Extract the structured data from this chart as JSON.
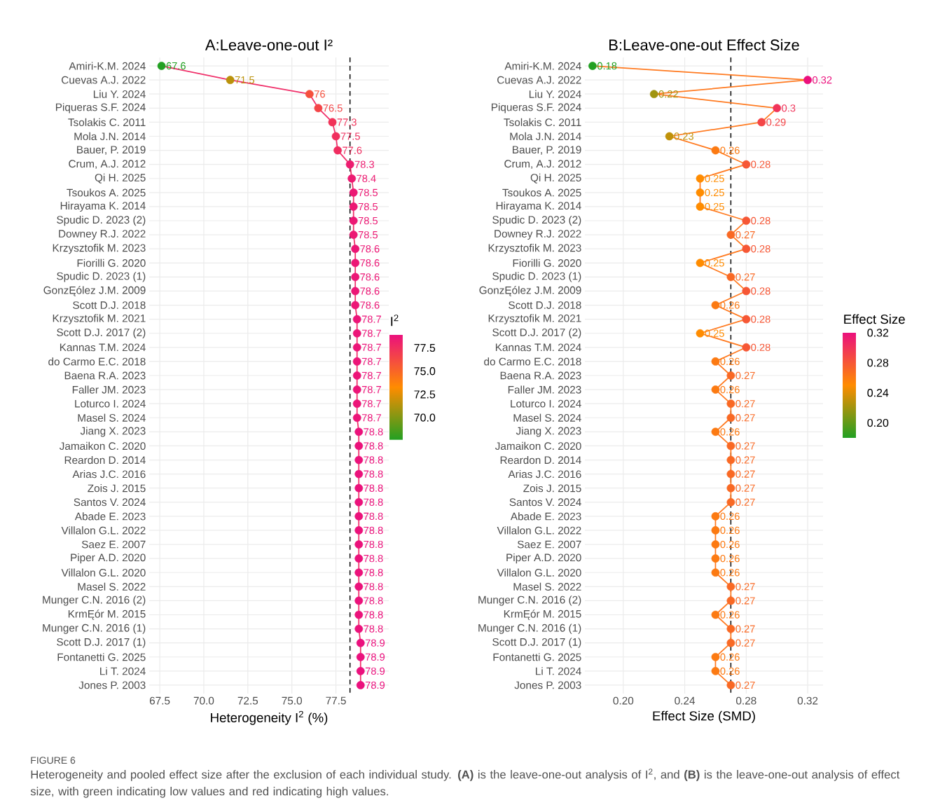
{
  "chart_data": [
    {
      "type": "line",
      "orientation": "horizontal",
      "title": "A:Leave-one-out I²",
      "xlabel": "Heterogeneity I$^{2}$ (%)",
      "clabel": "I$^{2}$",
      "categories": [
        "Amiri-K.M. 2024",
        "Cuevas A.J. 2022",
        "Liu Y. 2024",
        "Piqueras S.F. 2024",
        "Tsolakis C. 2011",
        "Mola J.N. 2014",
        "Bauer, P. 2019",
        "Crum, A.J. 2012",
        "Qi H. 2025",
        "Tsoukos A. 2025",
        "Hirayama K. 2014",
        "Spudic D. 2023 (2)",
        "Downey R.J. 2022",
        "Krzysztofik M. 2023",
        "Fiorilli G. 2020",
        "Spudic D. 2023 (1)",
        "GonzĘólez J.M. 2009",
        "Scott D.J. 2018",
        "Krzysztofik M. 2021",
        "Scott D.J. 2017 (2)",
        "Kannas T.M. 2024",
        "do Carmo E.C. 2018",
        "Baena R.A. 2023",
        "Faller JM. 2023",
        "Loturco I. 2024",
        "Masel S. 2024",
        "Jiang X. 2023",
        "Jamaikon C. 2020",
        "Reardon D. 2014",
        "Arias J.C. 2016",
        "Zois J. 2015",
        "Santos V. 2024",
        "Abade E. 2023",
        "Villalon G.L. 2022",
        "Saez E. 2007",
        "Piper A.D. 2020",
        "Villalon G.L. 2020",
        "Masel S. 2022",
        "Munger C.N. 2016 (2)",
        "KrmĘór M. 2015",
        "Munger C.N. 2016 (1)",
        "Scott D.J. 2017 (1)",
        "Fontanetti G. 2025",
        "Li T. 2024",
        "Jones P. 2003"
      ],
      "values": [
        67.6,
        71.5,
        76,
        76.5,
        77.3,
        77.5,
        77.6,
        78.3,
        78.4,
        78.5,
        78.5,
        78.5,
        78.5,
        78.6,
        78.6,
        78.6,
        78.6,
        78.6,
        78.7,
        78.7,
        78.7,
        78.7,
        78.7,
        78.7,
        78.7,
        78.7,
        78.8,
        78.8,
        78.8,
        78.8,
        78.8,
        78.8,
        78.8,
        78.8,
        78.8,
        78.8,
        78.8,
        78.8,
        78.8,
        78.8,
        78.8,
        78.9,
        78.9,
        78.9,
        78.9
      ],
      "color": "#f0306a",
      "clim": [
        67.6,
        78.9
      ],
      "cticks": [
        {
          "value": 70,
          "label": "70.0"
        },
        72.5,
        {
          "value": 75,
          "label": "75.0"
        },
        77.5
      ],
      "xlim": [
        66.9,
        80.5
      ],
      "xticks": [
        67.5,
        {
          "value": 70,
          "label": "70.0"
        },
        72.5,
        {
          "value": 75,
          "label": "75.0"
        },
        77.5
      ],
      "ref_lines": [
        {
          "axis": "x",
          "value": 78.3,
          "color": "#000000",
          "line_style": "dashed"
        }
      ],
      "marker": "circle",
      "line_style": "solid",
      "grid": true,
      "data_labels": true,
      "annotations": [
        "FIGURE 6",
        "Heterogeneity and pooled effect size after the exclusion of each individual study. **(A)** is the leave-one-out analysis of I$^{2}$, and **(B)** is the leave-one-out analysis of effect size, with green indicating low values and red indicating high values."
      ]
    },
    {
      "type": "line",
      "orientation": "horizontal",
      "title": "B:Leave-one-out Effect Size",
      "xlabel": "Effect Size (SMD)",
      "clabel": "Effect Size",
      "categories": [
        "Amiri-K.M. 2024",
        "Cuevas A.J. 2022",
        "Liu Y. 2024",
        "Piqueras S.F. 2024",
        "Tsolakis C. 2011",
        "Mola J.N. 2014",
        "Bauer, P. 2019",
        "Crum, A.J. 2012",
        "Qi H. 2025",
        "Tsoukos A. 2025",
        "Hirayama K. 2014",
        "Spudic D. 2023 (2)",
        "Downey R.J. 2022",
        "Krzysztofik M. 2023",
        "Fiorilli G. 2020",
        "Spudic D. 2023 (1)",
        "GonzĘólez J.M. 2009",
        "Scott D.J. 2018",
        "Krzysztofik M. 2021",
        "Scott D.J. 2017 (2)",
        "Kannas T.M. 2024",
        "do Carmo E.C. 2018",
        "Baena R.A. 2023",
        "Faller JM. 2023",
        "Loturco I. 2024",
        "Masel S. 2024",
        "Jiang X. 2023",
        "Jamaikon C. 2020",
        "Reardon D. 2014",
        "Arias J.C. 2016",
        "Zois J. 2015",
        "Santos V. 2024",
        "Abade E. 2023",
        "Villalon G.L. 2022",
        "Saez E. 2007",
        "Piper A.D. 2020",
        "Villalon G.L. 2020",
        "Masel S. 2022",
        "Munger C.N. 2016 (2)",
        "KrmĘór M. 2015",
        "Munger C.N. 2016 (1)",
        "Scott D.J. 2017 (1)",
        "Fontanetti G. 2025",
        "Li T. 2024",
        "Jones P. 2003"
      ],
      "values": [
        0.18,
        0.32,
        0.22,
        0.3,
        0.29,
        0.23,
        0.26,
        0.28,
        0.25,
        0.25,
        0.25,
        0.28,
        0.27,
        0.28,
        0.25,
        0.27,
        0.28,
        0.26,
        0.28,
        0.25,
        0.28,
        0.26,
        0.27,
        0.26,
        0.27,
        0.27,
        0.26,
        0.27,
        0.27,
        0.27,
        0.27,
        0.27,
        0.26,
        0.26,
        0.26,
        0.26,
        0.26,
        0.27,
        0.27,
        0.26,
        0.27,
        0.27,
        0.26,
        0.26,
        0.27
      ],
      "color": "#ff7a20",
      "clim": [
        0.18,
        0.32
      ],
      "cticks": [
        {
          "value": 0.2,
          "label": "0.20"
        },
        0.24,
        0.28,
        0.32
      ],
      "xlim": [
        0.175,
        0.33
      ],
      "xticks": [
        {
          "value": 0.2,
          "label": "0.20"
        },
        0.24,
        0.28,
        0.32
      ],
      "ref_lines": [
        {
          "axis": "x",
          "value": 0.27,
          "color": "#000000",
          "line_style": "dashed"
        }
      ],
      "marker": "circle",
      "line_style": "solid",
      "grid": true,
      "data_labels": true
    }
  ]
}
